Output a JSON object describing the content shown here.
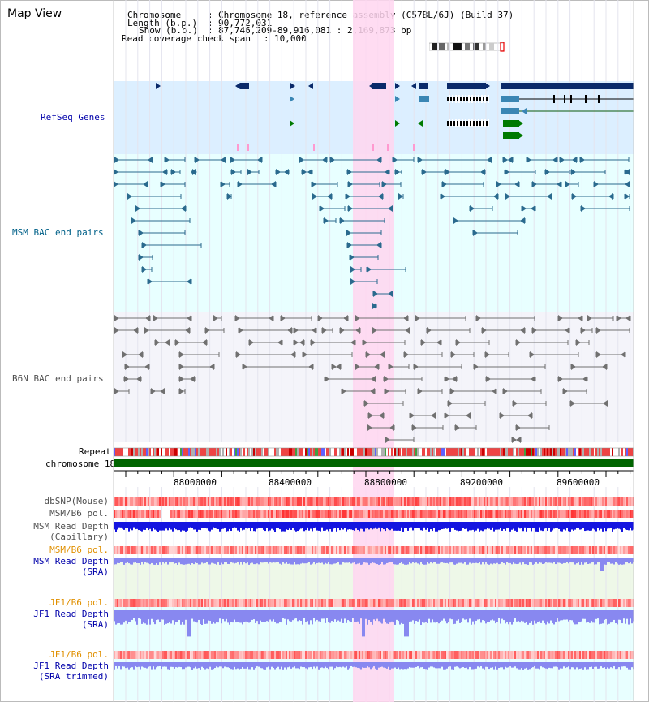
{
  "title": "Map View",
  "header": {
    "chromosome_label": "Chromosome",
    "chromosome_value": "Chromosome 18, reference assembly (C57BL/6J) (Build 37)",
    "length_label": "Length (b.p.)",
    "length_value": "90,772,031",
    "show_label": "Show (b.p.)",
    "show_value": "87,746,209-89,916,081 : 2,169,873 bp",
    "span_label": "Read coverage check span",
    "span_value": "10,000"
  },
  "tracks": {
    "refseq": {
      "label": "RefSeq Genes",
      "color": "#0000aa"
    },
    "msm_bac": {
      "label": "MSM BAC end pairs",
      "color": "#006088"
    },
    "b6n_bac": {
      "label": "B6N BAC end pairs",
      "color": "#505050"
    },
    "repeat": {
      "label": "Repeat",
      "color": "#000000"
    },
    "chromosome": {
      "label": "chromosome 18",
      "color": "#000000"
    },
    "dbsnp": {
      "label": "dbSNP(Mouse)",
      "color": "#505050"
    },
    "msm_pol_cap": {
      "label": "MSM/B6 pol.",
      "color": "#505050"
    },
    "msm_depth_cap": {
      "label1": "MSM Read Depth",
      "label2": "(Capillary)",
      "color": "#505050"
    },
    "msm_pol_sra": {
      "label": "MSM/B6 pol.",
      "color": "#e09000"
    },
    "msm_depth_sra": {
      "label1": "MSM Read Depth",
      "label2": "(SRA)",
      "color": "#0000aa"
    },
    "jf1_pol_sra": {
      "label": "JF1/B6 pol.",
      "color": "#e09000"
    },
    "jf1_depth_sra": {
      "label1": "JF1 Read Depth",
      "label2": "(SRA)",
      "color": "#0000aa"
    },
    "jf1_pol_trim": {
      "label": "JF1/B6 pol.",
      "color": "#e09000"
    },
    "jf1_depth_trim": {
      "label1": "JF1 Read Depth",
      "label2": "(SRA trimmed)",
      "color": "#0000aa"
    }
  },
  "axis": {
    "ticks": [
      "88000000",
      "88400000",
      "88800000",
      "89200000",
      "89600000"
    ],
    "range_start": 87746209,
    "range_end": 89916081
  },
  "colors": {
    "highlight": "#ffd6f0",
    "refseq_bg": "#dcefff",
    "msm_bg": "#e8ffff",
    "b6n_bg": "#f4f4fa",
    "chrom_bar": "#006400",
    "dark_gene": "#0a2a6a",
    "mid_gene": "#3a86b4",
    "green_gene": "#007a00",
    "msm_line": "#2a6a8e",
    "b6n_line": "#707070",
    "depth_blue": "#1515e0",
    "depth_light": "#8888f0",
    "pol_red": "#ee4444"
  }
}
